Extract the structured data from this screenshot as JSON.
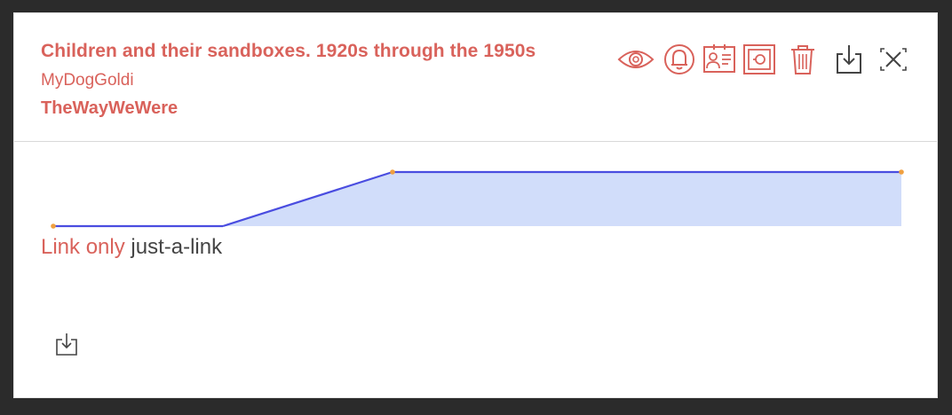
{
  "card": {
    "title": "Children and their sandboxes. 1920s through the 1950s",
    "user": "MyDogGoldi",
    "collection": "TheWayWeWere"
  },
  "toolbar": {
    "icons": [
      "eye-icon",
      "bell-icon",
      "id-card-icon",
      "safe-icon",
      "trash-icon",
      "download-icon",
      "close-icon"
    ]
  },
  "link": {
    "type_label": "Link only",
    "name": "just-a-link"
  },
  "colors": {
    "accent": "#d9625b",
    "line": "#4a4de0",
    "fill": "#d1ddfa",
    "point": "#f0a040",
    "dark_icon": "#444444"
  },
  "chart_data": {
    "type": "area",
    "x": [
      0,
      1,
      2,
      3,
      4,
      5
    ],
    "values": [
      0,
      0,
      1,
      1,
      1,
      1
    ],
    "markers": [
      0,
      2,
      5
    ],
    "ylim": [
      0,
      1
    ],
    "grid": false
  }
}
